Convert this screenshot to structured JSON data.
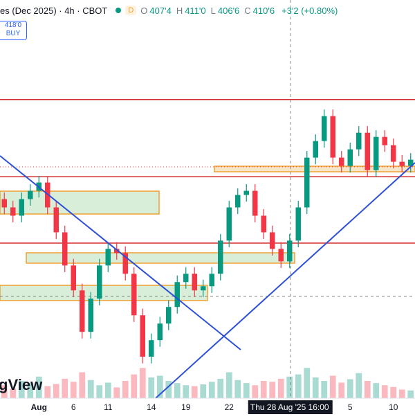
{
  "header": {
    "symbol": "es (Dec 2025) · 4h · CBOT",
    "badge": "D",
    "ohlc": [
      [
        "O",
        "407'4"
      ],
      [
        "H",
        "411'0"
      ],
      [
        "L",
        "406'6"
      ],
      [
        "C",
        "410'6"
      ]
    ],
    "change": "+3'2 (+0.80%)",
    "order_price": "418'0",
    "order_side": "BUY"
  },
  "watermark": "gView",
  "chart_data": {
    "type": "candlestick",
    "categories": [
      null,
      null,
      null,
      null,
      "Aug",
      null,
      null,
      null,
      "6",
      null,
      null,
      null,
      "11",
      null,
      null,
      null,
      null,
      "14",
      null,
      null,
      null,
      "19",
      null,
      null,
      null,
      null,
      "22",
      null,
      null,
      null,
      null,
      null,
      null,
      "Thu 28 Aug '25   16:00",
      null,
      null,
      null,
      null,
      null,
      null,
      "5",
      null,
      null,
      null,
      null,
      "10",
      null,
      null
    ],
    "highlight_category": 33,
    "open": [
      406,
      405,
      404,
      406,
      407,
      408,
      405,
      402,
      398,
      395,
      390,
      394,
      398,
      400,
      399.5,
      397,
      392,
      387,
      389,
      391,
      393,
      396,
      397,
      395,
      395.5,
      397,
      401,
      405,
      406.5,
      407,
      404,
      402,
      400,
      398.5,
      401,
      405,
      411,
      413,
      416,
      411,
      410,
      412,
      414,
      409.5,
      413.5,
      412.5,
      410.5,
      410
    ],
    "high": [
      406.8,
      405.8,
      406.8,
      407.8,
      408.8,
      408.8,
      405.8,
      402.8,
      398.8,
      395.8,
      394.8,
      398.8,
      400.8,
      400.8,
      400.3,
      397.8,
      392.8,
      389.8,
      391.8,
      393.8,
      396.8,
      397.8,
      397.8,
      396.3,
      397.8,
      401.8,
      405.8,
      407.3,
      407.8,
      407.8,
      404.8,
      402.8,
      400.8,
      401.8,
      405.8,
      411.8,
      413.8,
      416.8,
      416.8,
      411.8,
      412.8,
      414.8,
      414.8,
      414.3,
      414.3,
      413.3,
      411.3,
      411.55
    ],
    "low": [
      404.2,
      403.2,
      403.2,
      405.2,
      406.2,
      404.2,
      401.2,
      397.2,
      394.2,
      389.2,
      389.2,
      393.2,
      397.2,
      398.7,
      396.2,
      391.2,
      386.2,
      386.2,
      388.2,
      390.2,
      392.2,
      395.2,
      394.2,
      394.2,
      394.7,
      396.2,
      400.2,
      404.2,
      405.7,
      403.2,
      401.2,
      399.2,
      397.7,
      397.7,
      400.2,
      404.2,
      410.2,
      412.2,
      410.2,
      409.2,
      409.2,
      411.2,
      408.7,
      408.7,
      411.7,
      409.7,
      409.2,
      409.2
    ],
    "close": [
      405,
      404,
      406,
      407,
      408,
      405,
      402,
      398,
      395,
      390,
      394,
      398,
      400,
      399.5,
      397,
      392,
      387,
      389,
      391,
      393,
      396,
      397,
      395,
      395.5,
      397,
      401,
      405,
      406.5,
      407,
      404,
      402,
      400,
      398.5,
      401,
      405,
      411,
      413,
      416,
      411,
      410,
      412,
      414,
      409.5,
      413.5,
      412.5,
      410.5,
      410,
      410.75
    ],
    "volume": [
      30,
      22,
      40,
      35,
      50,
      28,
      33,
      45,
      38,
      60,
      42,
      30,
      36,
      25,
      40,
      55,
      70,
      48,
      52,
      40,
      35,
      30,
      28,
      32,
      38,
      45,
      60,
      42,
      35,
      30,
      40,
      38,
      45,
      50,
      55,
      70,
      48,
      40,
      52,
      36,
      44,
      58,
      40,
      35,
      30,
      26,
      20,
      18
    ],
    "volume_max": 120,
    "levels": [
      418,
      408.7,
      400.7
    ],
    "ylim": [
      382,
      430
    ],
    "up_color": "#089981",
    "down_color": "#f23645",
    "level_color": "#d32f2f"
  }
}
